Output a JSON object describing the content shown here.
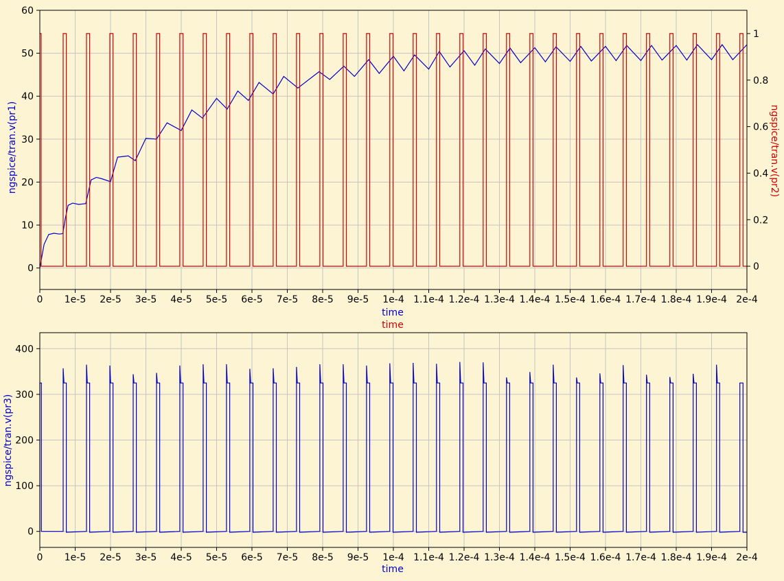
{
  "colors": {
    "background": "#fdf4d4",
    "plot_bg": "#fdf4d4",
    "grid": "#c4c4c4",
    "frame": "#000000",
    "blue": "#0000c8",
    "red": "#d20000"
  },
  "chart_data": [
    {
      "id": "top",
      "type": "line",
      "grid": true,
      "xlabel": "time",
      "xlabel_secondary": "time",
      "ylabel_left": "ngspice/tran.v(pr1)",
      "ylabel_right": "ngspice/tran.v(pr2)",
      "xlim": [
        0,
        0.0002
      ],
      "ylim_left": [
        -5,
        60
      ],
      "ylim_right": [
        -0.1,
        1.1
      ],
      "x_ticks": [
        0,
        1e-05,
        2e-05,
        3e-05,
        4e-05,
        5e-05,
        6e-05,
        7e-05,
        8e-05,
        9e-05,
        0.0001,
        0.00011,
        0.00012,
        0.00013,
        0.00014,
        0.00015,
        0.00016,
        0.00017,
        0.00018,
        0.00019,
        0.0002
      ],
      "x_tick_labels": [
        "0",
        "1e-5",
        "2e-5",
        "3e-5",
        "4e-5",
        "5e-5",
        "6e-5",
        "7e-5",
        "8e-5",
        "9e-5",
        "1e-4",
        "1.1e-4",
        "1.2e-4",
        "1.3e-4",
        "1.4e-4",
        "1.5e-4",
        "1.6e-4",
        "1.7e-4",
        "1.8e-4",
        "1.9e-4",
        "2e-4"
      ],
      "y_ticks_left": [
        0,
        10,
        20,
        30,
        40,
        50,
        60
      ],
      "y_tick_labels_left": [
        "0",
        "10",
        "20",
        "30",
        "40",
        "50",
        "60"
      ],
      "y_ticks_right": [
        0,
        0.2,
        0.4,
        0.6,
        0.8,
        1
      ],
      "y_tick_labels_right": [
        "0",
        "0.2",
        "0.4",
        "0.6",
        "0.8",
        "1"
      ],
      "series": [
        {
          "axis": "left",
          "color": "blue",
          "description": "capacitor-style charging voltage with ripple",
          "x": [
            0,
            1.2e-06,
            2.5e-06,
            4e-06,
            5.5e-06,
            6.5e-06,
            7.2e-06,
            8e-06,
            9.3e-06,
            1.1e-05,
            1.3e-05,
            1.45e-05,
            1.6e-05,
            1.75e-05,
            2e-05,
            2.2e-05,
            2.5e-05,
            2.7e-05,
            3e-05,
            3.3e-05,
            3.6e-05,
            4e-05,
            4.3e-05,
            4.6e-05,
            5e-05,
            5.3e-05,
            5.6e-05,
            5.9e-05,
            6.2e-05,
            6.6e-05,
            6.9e-05,
            7.3e-05,
            7.9e-05,
            8.2e-05,
            8.6e-05,
            8.9e-05,
            9.3e-05,
            9.6e-05,
            0.0001,
            0.000103,
            0.000106,
            0.00011,
            0.000113,
            0.000116,
            0.00012,
            0.000123,
            0.000126,
            0.00013,
            0.000133,
            0.000136,
            0.00014,
            0.000143,
            0.000146,
            0.00015,
            0.000153,
            0.000156,
            0.00016,
            0.000163,
            0.000166,
            0.00017,
            0.000173,
            0.000176,
            0.00018,
            0.000183,
            0.000186,
            0.00019,
            0.000193,
            0.000196,
            0.0002
          ],
          "y": [
            0,
            5.5,
            7.8,
            8.1,
            7.9,
            8.0,
            11.5,
            14.6,
            15.1,
            14.8,
            15.0,
            20.5,
            21.1,
            20.8,
            20.1,
            25.8,
            26.1,
            25.0,
            30.2,
            30.0,
            33.8,
            32.0,
            36.8,
            34.9,
            39.5,
            37.0,
            41.2,
            39.0,
            43.2,
            40.5,
            44.6,
            41.9,
            45.7,
            43.9,
            47.0,
            44.6,
            48.5,
            45.3,
            49.3,
            45.9,
            49.6,
            46.3,
            50.4,
            46.8,
            50.6,
            47.2,
            51.0,
            47.6,
            51.2,
            47.8,
            51.3,
            48.0,
            51.5,
            48.1,
            51.6,
            48.2,
            51.6,
            48.3,
            51.8,
            48.3,
            51.8,
            48.4,
            51.8,
            48.4,
            52.0,
            48.5,
            52.0,
            48.5,
            52.0
          ]
        },
        {
          "axis": "right",
          "color": "red",
          "description": "square-wave gate signal, period 6.6e-6 s, high 1 for ~0.9e-6 s",
          "period": 6.6e-06,
          "high_width": 9e-07,
          "low_value": 0,
          "high_value": 1
        }
      ]
    },
    {
      "id": "bottom",
      "type": "line",
      "grid": true,
      "xlabel": "time",
      "ylabel_left": "ngspice/tran.v(pr3)",
      "xlim": [
        0,
        0.0002
      ],
      "ylim_left": [
        -35,
        435
      ],
      "x_ticks": [
        0,
        1e-05,
        2e-05,
        3e-05,
        4e-05,
        5e-05,
        6e-05,
        7e-05,
        8e-05,
        9e-05,
        0.0001,
        0.00011,
        0.00012,
        0.00013,
        0.00014,
        0.00015,
        0.00016,
        0.00017,
        0.00018,
        0.00019,
        0.0002
      ],
      "x_tick_labels": [
        "0",
        "1e-5",
        "2e-5",
        "3e-5",
        "4e-5",
        "5e-5",
        "6e-5",
        "7e-5",
        "8e-5",
        "9e-5",
        "1e-4",
        "1.1e-4",
        "1.2e-4",
        "1.3e-4",
        "1.4e-4",
        "1.5e-4",
        "1.6e-4",
        "1.7e-4",
        "1.8e-4",
        "1.9e-4",
        "2e-4"
      ],
      "y_ticks_left": [
        0,
        100,
        200,
        300,
        400
      ],
      "y_tick_labels_left": [
        "0",
        "100",
        "200",
        "300",
        "400"
      ],
      "series": [
        {
          "axis": "left",
          "color": "blue",
          "description": "pulse train ~325 V with spikes, 0 otherwise",
          "period": 6.6e-06,
          "pulse_width": 9e-07,
          "pulse_level": 325,
          "spike_peaks": [
            325,
            357,
            365,
            363,
            344,
            347,
            363,
            366,
            366,
            356,
            357,
            360,
            366,
            366,
            363,
            368,
            369,
            367,
            371,
            370,
            337,
            349,
            365,
            337,
            346,
            364,
            343,
            338,
            345,
            365
          ]
        }
      ]
    }
  ]
}
